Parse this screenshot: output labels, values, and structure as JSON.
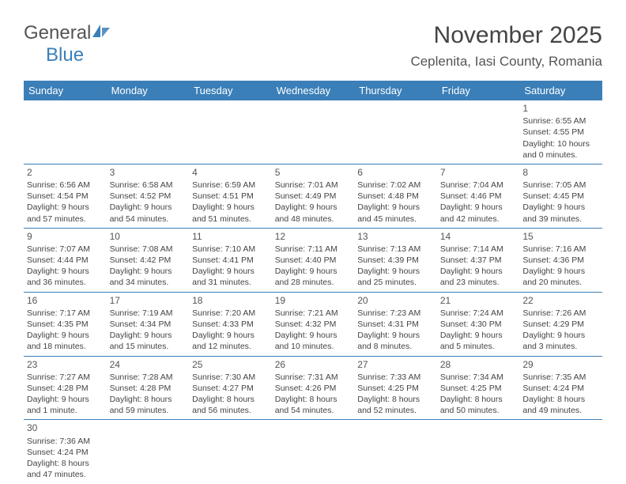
{
  "brand": {
    "name_a": "General",
    "name_b": "Blue"
  },
  "colors": {
    "header_bg": "#3b7fb8",
    "header_fg": "#ffffff",
    "row_border": "#3b7fb8",
    "text": "#444444",
    "logo_gray": "#555555",
    "logo_blue": "#3b7fb8"
  },
  "title": "November 2025",
  "location": "Ceplenita, Iasi County, Romania",
  "weekdays": [
    "Sunday",
    "Monday",
    "Tuesday",
    "Wednesday",
    "Thursday",
    "Friday",
    "Saturday"
  ],
  "layout": {
    "columns": 7,
    "first_day_column": 6,
    "cell_font_size_pt": 8,
    "header_font_size_pt": 10
  },
  "days": [
    {
      "n": 1,
      "sunrise": "6:55 AM",
      "sunset": "4:55 PM",
      "daylight": "10 hours and 0 minutes."
    },
    {
      "n": 2,
      "sunrise": "6:56 AM",
      "sunset": "4:54 PM",
      "daylight": "9 hours and 57 minutes."
    },
    {
      "n": 3,
      "sunrise": "6:58 AM",
      "sunset": "4:52 PM",
      "daylight": "9 hours and 54 minutes."
    },
    {
      "n": 4,
      "sunrise": "6:59 AM",
      "sunset": "4:51 PM",
      "daylight": "9 hours and 51 minutes."
    },
    {
      "n": 5,
      "sunrise": "7:01 AM",
      "sunset": "4:49 PM",
      "daylight": "9 hours and 48 minutes."
    },
    {
      "n": 6,
      "sunrise": "7:02 AM",
      "sunset": "4:48 PM",
      "daylight": "9 hours and 45 minutes."
    },
    {
      "n": 7,
      "sunrise": "7:04 AM",
      "sunset": "4:46 PM",
      "daylight": "9 hours and 42 minutes."
    },
    {
      "n": 8,
      "sunrise": "7:05 AM",
      "sunset": "4:45 PM",
      "daylight": "9 hours and 39 minutes."
    },
    {
      "n": 9,
      "sunrise": "7:07 AM",
      "sunset": "4:44 PM",
      "daylight": "9 hours and 36 minutes."
    },
    {
      "n": 10,
      "sunrise": "7:08 AM",
      "sunset": "4:42 PM",
      "daylight": "9 hours and 34 minutes."
    },
    {
      "n": 11,
      "sunrise": "7:10 AM",
      "sunset": "4:41 PM",
      "daylight": "9 hours and 31 minutes."
    },
    {
      "n": 12,
      "sunrise": "7:11 AM",
      "sunset": "4:40 PM",
      "daylight": "9 hours and 28 minutes."
    },
    {
      "n": 13,
      "sunrise": "7:13 AM",
      "sunset": "4:39 PM",
      "daylight": "9 hours and 25 minutes."
    },
    {
      "n": 14,
      "sunrise": "7:14 AM",
      "sunset": "4:37 PM",
      "daylight": "9 hours and 23 minutes."
    },
    {
      "n": 15,
      "sunrise": "7:16 AM",
      "sunset": "4:36 PM",
      "daylight": "9 hours and 20 minutes."
    },
    {
      "n": 16,
      "sunrise": "7:17 AM",
      "sunset": "4:35 PM",
      "daylight": "9 hours and 18 minutes."
    },
    {
      "n": 17,
      "sunrise": "7:19 AM",
      "sunset": "4:34 PM",
      "daylight": "9 hours and 15 minutes."
    },
    {
      "n": 18,
      "sunrise": "7:20 AM",
      "sunset": "4:33 PM",
      "daylight": "9 hours and 12 minutes."
    },
    {
      "n": 19,
      "sunrise": "7:21 AM",
      "sunset": "4:32 PM",
      "daylight": "9 hours and 10 minutes."
    },
    {
      "n": 20,
      "sunrise": "7:23 AM",
      "sunset": "4:31 PM",
      "daylight": "9 hours and 8 minutes."
    },
    {
      "n": 21,
      "sunrise": "7:24 AM",
      "sunset": "4:30 PM",
      "daylight": "9 hours and 5 minutes."
    },
    {
      "n": 22,
      "sunrise": "7:26 AM",
      "sunset": "4:29 PM",
      "daylight": "9 hours and 3 minutes."
    },
    {
      "n": 23,
      "sunrise": "7:27 AM",
      "sunset": "4:28 PM",
      "daylight": "9 hours and 1 minute."
    },
    {
      "n": 24,
      "sunrise": "7:28 AM",
      "sunset": "4:28 PM",
      "daylight": "8 hours and 59 minutes."
    },
    {
      "n": 25,
      "sunrise": "7:30 AM",
      "sunset": "4:27 PM",
      "daylight": "8 hours and 56 minutes."
    },
    {
      "n": 26,
      "sunrise": "7:31 AM",
      "sunset": "4:26 PM",
      "daylight": "8 hours and 54 minutes."
    },
    {
      "n": 27,
      "sunrise": "7:33 AM",
      "sunset": "4:25 PM",
      "daylight": "8 hours and 52 minutes."
    },
    {
      "n": 28,
      "sunrise": "7:34 AM",
      "sunset": "4:25 PM",
      "daylight": "8 hours and 50 minutes."
    },
    {
      "n": 29,
      "sunrise": "7:35 AM",
      "sunset": "4:24 PM",
      "daylight": "8 hours and 49 minutes."
    },
    {
      "n": 30,
      "sunrise": "7:36 AM",
      "sunset": "4:24 PM",
      "daylight": "8 hours and 47 minutes."
    }
  ],
  "labels": {
    "sunrise_prefix": "Sunrise: ",
    "sunset_prefix": "Sunset: ",
    "daylight_prefix": "Daylight: "
  }
}
